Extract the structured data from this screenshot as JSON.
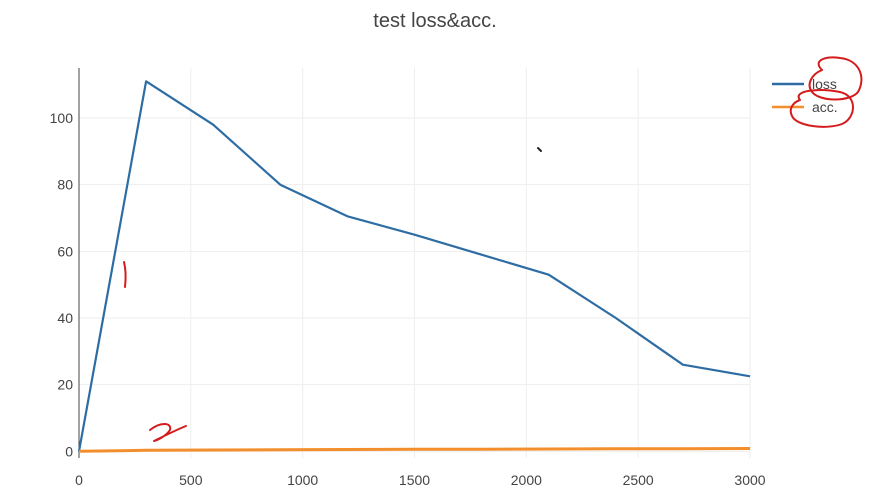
{
  "chart_data": {
    "type": "line",
    "title": "test loss&acc.",
    "xlabel": "",
    "ylabel": "",
    "xlim": [
      0,
      3000
    ],
    "ylim": [
      -2,
      115
    ],
    "x_ticks": [
      "0",
      "500",
      "1000",
      "1500",
      "2000",
      "2500",
      "3000"
    ],
    "y_ticks": [
      "0",
      "20",
      "40",
      "60",
      "80",
      "100"
    ],
    "grid": true,
    "legend_position": "top-right",
    "series": [
      {
        "name": "loss",
        "color": "#2e6da4",
        "x": [
          0,
          300,
          600,
          900,
          1200,
          1500,
          1800,
          2100,
          2400,
          2700,
          3000
        ],
        "y": [
          0,
          111,
          98,
          80,
          70.5,
          65,
          59,
          53,
          40,
          26,
          22.5
        ]
      },
      {
        "name": "acc.",
        "color": "#f28e2b",
        "x": [
          0,
          300,
          600,
          900,
          1200,
          1500,
          1800,
          2100,
          2400,
          2700,
          3000
        ],
        "y": [
          0,
          0.3,
          0.4,
          0.5,
          0.55,
          0.6,
          0.65,
          0.7,
          0.75,
          0.8,
          0.85
        ]
      }
    ]
  }
}
